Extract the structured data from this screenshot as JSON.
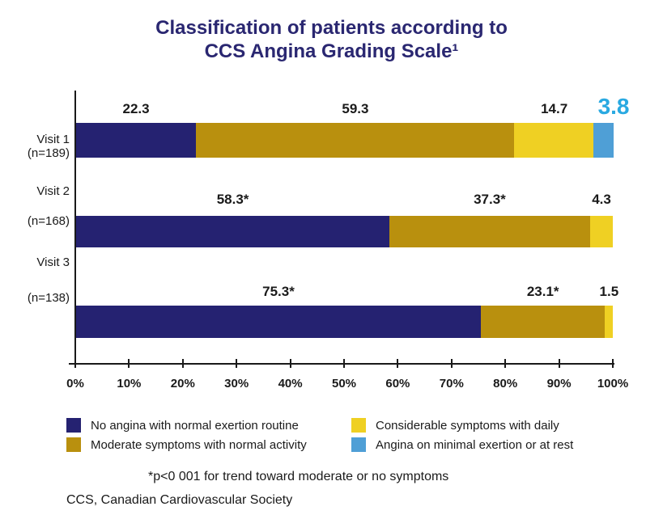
{
  "title": {
    "line1": "Classification of patients according to",
    "line2": "CCS Angina Grading Scale¹"
  },
  "chart_data": {
    "type": "bar",
    "orientation": "horizontal",
    "stacked": true,
    "categories": [
      "Visit 1",
      "Visit 2",
      "Visit 3"
    ],
    "category_counts": [
      "(n=189)",
      "(n=168)",
      "(n=138)"
    ],
    "xlim": [
      0,
      100
    ],
    "x_ticks": [
      "0%",
      "10%",
      "20%",
      "30%",
      "40%",
      "50%",
      "60%",
      "70%",
      "80%",
      "90%",
      "100%"
    ],
    "grid": false,
    "legend_position": "bottom",
    "series": [
      {
        "name": "No angina with normal exertion routine",
        "color": "#252271",
        "values": [
          22.3,
          58.3,
          75.3
        ]
      },
      {
        "name": "Moderate symptoms with normal activity",
        "color": "#B9900E",
        "values": [
          59.3,
          37.3,
          23.1
        ]
      },
      {
        "name": "Considerable symptoms with daily",
        "color": "#EFD023",
        "values": [
          14.7,
          4.3,
          1.5
        ]
      },
      {
        "name": "Angina on minimal exertion or at rest",
        "color": "#4F9FD6",
        "values": [
          3.8,
          0,
          0
        ]
      }
    ],
    "data_labels": [
      [
        "22.3",
        "59.3",
        "14.7",
        "3.8"
      ],
      [
        "58.3*",
        "37.3*",
        "4.3",
        ""
      ],
      [
        "75.3*",
        "23.1*",
        "1.5",
        ""
      ]
    ],
    "highlight_label": {
      "row": 0,
      "series": 3,
      "text": "3.8",
      "color": "#29A9E1"
    }
  },
  "footnotes": {
    "significance": "*p<0 001 for trend toward moderate or no symptoms",
    "abbreviation": "CCS, Canadian Cardiovascular Society"
  }
}
